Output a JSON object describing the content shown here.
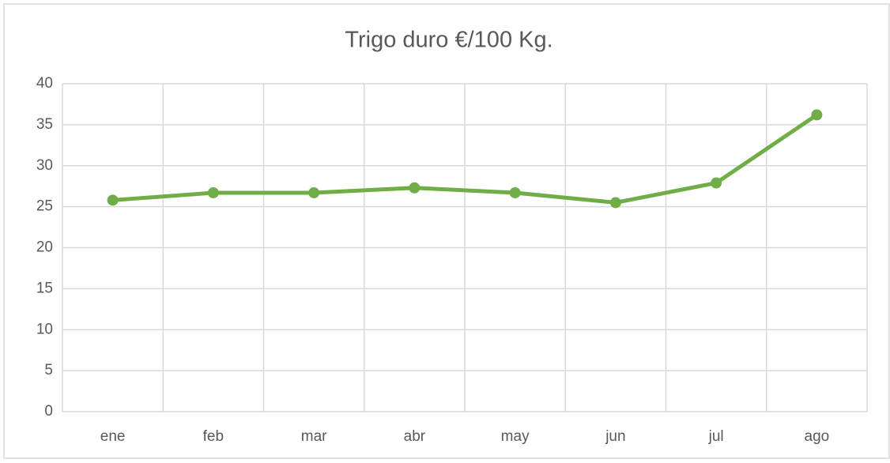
{
  "chart_data": {
    "type": "line",
    "title": "Trigo duro €/100 Kg.",
    "categories": [
      "ene",
      "feb",
      "mar",
      "abr",
      "may",
      "jun",
      "jul",
      "ago"
    ],
    "series": [
      {
        "name": "Trigo duro",
        "color": "#70ad47",
        "values": [
          25.8,
          26.7,
          26.7,
          27.3,
          26.7,
          25.5,
          27.9,
          36.2
        ]
      }
    ],
    "ylim": [
      0,
      40
    ],
    "yticks": [
      0,
      5,
      10,
      15,
      20,
      25,
      30,
      35,
      40
    ],
    "grid": true
  }
}
